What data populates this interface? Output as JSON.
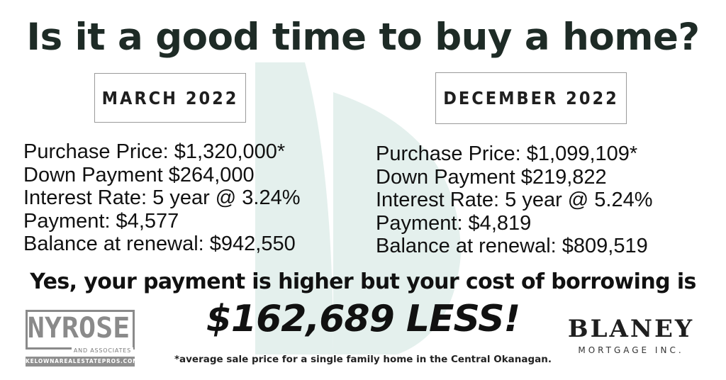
{
  "title": "Is it a good time to buy a home?",
  "left_column": {
    "period": "MARCH 2022",
    "lines": [
      "Purchase Price: $1,320,000*",
      "Down Payment $264,000",
      "Interest Rate: 5 year @ 3.24%",
      "Payment: $4,577",
      "Balance at renewal: $942,550"
    ]
  },
  "right_column": {
    "period": "DECEMBER 2022",
    "lines": [
      "Purchase Price: $1,099,109*",
      "Down Payment $219,822",
      "Interest Rate: 5 year @ 5.24%",
      "Payment: $4,819",
      "Balance at renewal: $809,519"
    ]
  },
  "headline": "Yes, your payment is higher but your cost of borrowing is",
  "savings": "$162,689 LESS!",
  "footnote": "*average sale price for a single family home in the Central Okanagan.",
  "logos": {
    "nyrose": {
      "name": "NYROSE",
      "associates": "AND ASSOCIATES",
      "website": "KELOWNAREALESTATEPROS.COM"
    },
    "blaney": {
      "name": "BLANEY",
      "subtitle": "MORTGAGE INC."
    }
  },
  "colors": {
    "title": "#1e2b26",
    "watermark": "#e3efec",
    "logo_gray": "#8a8a8a"
  }
}
